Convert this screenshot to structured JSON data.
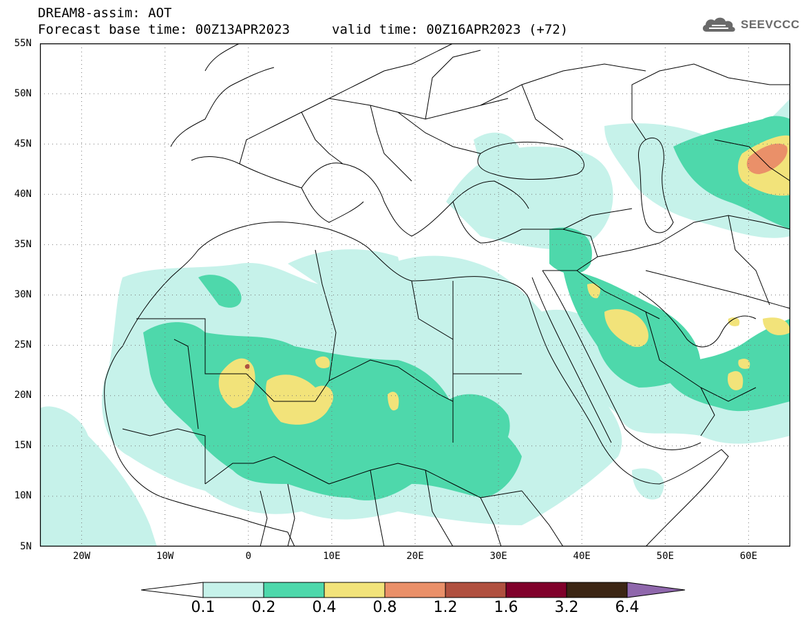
{
  "header": {
    "title": "DREAM8-assim: AOT",
    "base_time": "Forecast base time: 00Z13APR2023",
    "valid_time": "valid time: 00Z16APR2023 (+72)"
  },
  "logo": {
    "text": "SEEVCCC",
    "icon": "cloud-icon"
  },
  "map": {
    "lat_labels": [
      "55N",
      "50N",
      "45N",
      "40N",
      "35N",
      "30N",
      "25N",
      "20N",
      "15N",
      "10N",
      "5N"
    ],
    "lon_labels": [
      "20W",
      "10W",
      "0",
      "10E",
      "20E",
      "30E",
      "40E",
      "50E",
      "60E"
    ],
    "extent": {
      "lon_min": -25,
      "lon_max": 65,
      "lat_min": 5,
      "lat_max": 55
    },
    "grid": true,
    "field": "Aerosol Optical Thickness"
  },
  "colorbar": {
    "labels": [
      "0.1",
      "0.2",
      "0.4",
      "0.8",
      "1.2",
      "1.6",
      "3.2",
      "6.4"
    ],
    "colors": [
      "#c6f2ea",
      "#4ed8ab",
      "#f2e37a",
      "#ea9069",
      "#b0503f",
      "#80012b",
      "#3c2614",
      "#8f67ac"
    ],
    "under_color": "#ffffff"
  }
}
